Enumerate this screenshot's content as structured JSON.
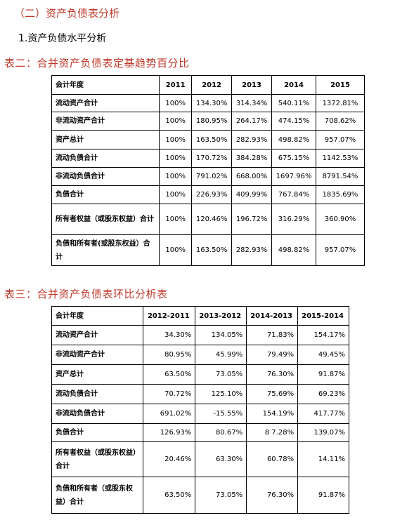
{
  "section_title": "（二）资产负债表分析",
  "subsection_title": "1.资产负债水平分析",
  "table2": {
    "caption": "表二：合并资产负债表定基趋势百分比",
    "header": [
      "会计年度",
      "2011",
      "2012",
      "2013",
      "2014",
      "2015"
    ],
    "rows": [
      [
        "流动资产合计",
        "100%",
        "134.30%",
        "314.34%",
        "540.11%",
        "1372.81%"
      ],
      [
        "非流动资产合计",
        "100%",
        "180.95%",
        "264.17%",
        "474.15%",
        "708.62%"
      ],
      [
        "资产总计",
        "100%",
        "163.50%",
        "282.93%",
        "498.82%",
        "957.07%"
      ],
      [
        "流动负债合计",
        "100%",
        "170.72%",
        "384.28%",
        "675.15%",
        "1142.53%"
      ],
      [
        "非流动负债合计",
        "100%",
        "791.02%",
        "668.00%",
        "1697.96%",
        "8791.54%"
      ],
      [
        "负债合计",
        "100%",
        "226.93%",
        "409.99%",
        "767.84%",
        "1835.69%"
      ],
      [
        "所有者权益（或股东权益）合计",
        "100%",
        "120.46%",
        "196.72%",
        "316.29%",
        "360.90%"
      ],
      [
        "负债和所有者(或股东权益）合计",
        "100%",
        "163.50%",
        "282.93%",
        "498.82%",
        "957.07%"
      ]
    ]
  },
  "table3": {
    "caption": "表三：合并资产负债表环比分析表",
    "header": [
      "会计年度",
      "2012-2011",
      "2013-2012",
      "2014-2013",
      "2015-2014"
    ],
    "rows": [
      [
        "流动资产合计",
        "34.30%",
        "134.05%",
        "71.83%",
        "154.17%"
      ],
      [
        "非流动资产合计",
        "80.95%",
        "45.99%",
        "79.49%",
        "49.45%"
      ],
      [
        "资产总计",
        "63.50%",
        "73.05%",
        "76.30%",
        "91.87%"
      ],
      [
        "流动负债合计",
        "70.72%",
        "125.10%",
        "75.69%",
        "69.23%"
      ],
      [
        "非流动负债合计",
        "691.02%",
        "-15.55%",
        "154.19%",
        "417.77%"
      ],
      [
        "负债合计",
        "126.93%",
        "80.67%",
        "8 7.28%",
        "139.07%"
      ],
      [
        "所有者权益（或股东权益）合计",
        "20.46%",
        "63.30%",
        "60.78%",
        "14.11%"
      ],
      [
        "负债和所有者（或股东权益）合计",
        "63.50%",
        "73.05%",
        "76.30%",
        "91.87%"
      ]
    ]
  }
}
